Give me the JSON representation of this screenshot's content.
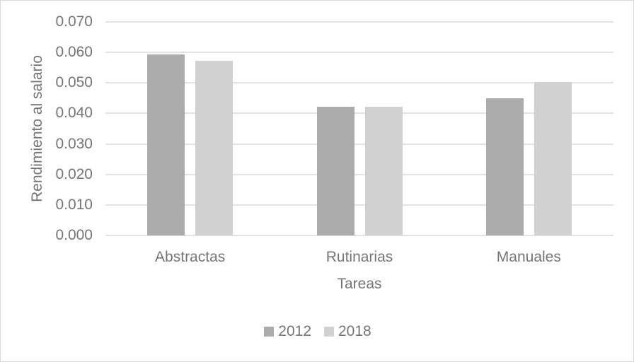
{
  "chart_data": {
    "type": "bar",
    "title": "",
    "xlabel": "Tareas",
    "ylabel": "Rendimiento al salario",
    "categories": [
      "Abstractas",
      "Rutinarias",
      "Manuales"
    ],
    "series": [
      {
        "name": "2012",
        "color": "#ababab",
        "values": [
          0.0593,
          0.0422,
          0.045
        ]
      },
      {
        "name": "2018",
        "color": "#d1d1d1",
        "values": [
          0.0572,
          0.0422,
          0.0504
        ]
      }
    ],
    "ylim": [
      0,
      0.07
    ],
    "ytick_step": 0.01,
    "ytick_labels_top_to_bottom": [
      "0.070",
      "0.060",
      "0.050",
      "0.040",
      "0.030",
      "0.020",
      "0.010",
      "0.000"
    ],
    "grid": true,
    "legend_position": "bottom",
    "legend_entries": [
      "2012",
      "2018"
    ]
  },
  "colors": {
    "background": "#ffffff",
    "frame_border": "#d9d9d9",
    "gridline": "#e2e2e2",
    "axis_text": "#757575",
    "series_2012": "#ababab",
    "series_2018": "#d1d1d1"
  }
}
